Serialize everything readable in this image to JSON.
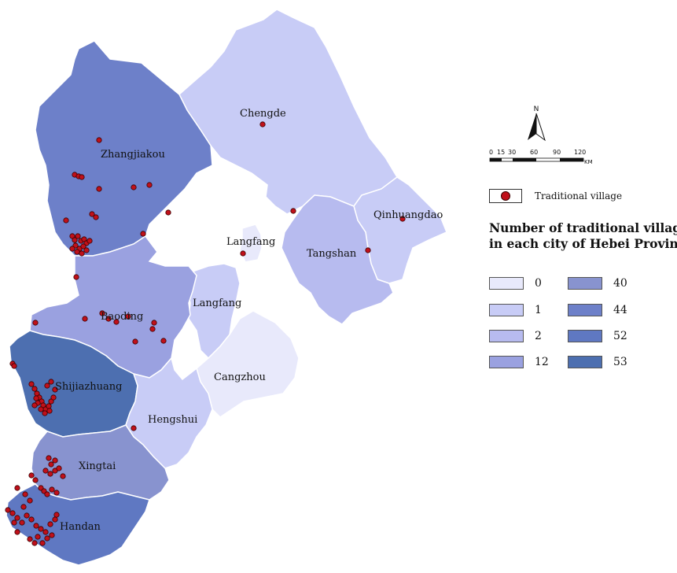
{
  "map": {
    "colors": {
      "c0": "#e8e9fb",
      "c1": "#c8ccf6",
      "c2": "#b7bbef",
      "c12": "#9aa1e0",
      "c40": "#8893cf",
      "c44": "#6d80c9",
      "c52": "#5f78c2",
      "c53": "#4d6fb0",
      "village": "#c0101a",
      "border": "#ffffff"
    },
    "cities": [
      {
        "id": "chengde",
        "name": "Chengde",
        "count": 1
      },
      {
        "id": "zhangjiakou",
        "name": "Zhangjiakou",
        "count": 44
      },
      {
        "id": "qinhuangdao",
        "name": "Qinhuangdao",
        "count": 1
      },
      {
        "id": "tangshan",
        "name": "Tangshan",
        "count": 2
      },
      {
        "id": "langfang-north",
        "name": "Langfang",
        "count": 0
      },
      {
        "id": "langfang",
        "name": "Langfang",
        "count": 1
      },
      {
        "id": "baoding",
        "name": "Baoding",
        "count": 12
      },
      {
        "id": "cangzhou",
        "name": "Cangzhou",
        "count": 0
      },
      {
        "id": "shijiazhuang",
        "name": "Shijiazhuang",
        "count": 53
      },
      {
        "id": "hengshui",
        "name": "Hengshui",
        "count": 1
      },
      {
        "id": "xingtai",
        "name": "Xingtai",
        "count": 40
      },
      {
        "id": "handan",
        "name": "Handan",
        "count": 52
      }
    ]
  },
  "north_label": "N",
  "scale": {
    "ticks": [
      "0",
      "15",
      "30",
      "60",
      "90",
      "120"
    ],
    "unit": "KM"
  },
  "legend": {
    "village_label": "Traditional village",
    "title_line1": "Number of traditional villages",
    "title_line2": "in each city of Hebei Province",
    "classes": [
      {
        "value": "0",
        "color": "#e8e9fb"
      },
      {
        "value": "1",
        "color": "#c8ccf6"
      },
      {
        "value": "2",
        "color": "#b7bbef"
      },
      {
        "value": "12",
        "color": "#9aa1e0"
      },
      {
        "value": "40",
        "color": "#8893cf"
      },
      {
        "value": "44",
        "color": "#6d80c9"
      },
      {
        "value": "52",
        "color": "#5f78c2"
      },
      {
        "value": "53",
        "color": "#4d6fb0"
      }
    ]
  }
}
